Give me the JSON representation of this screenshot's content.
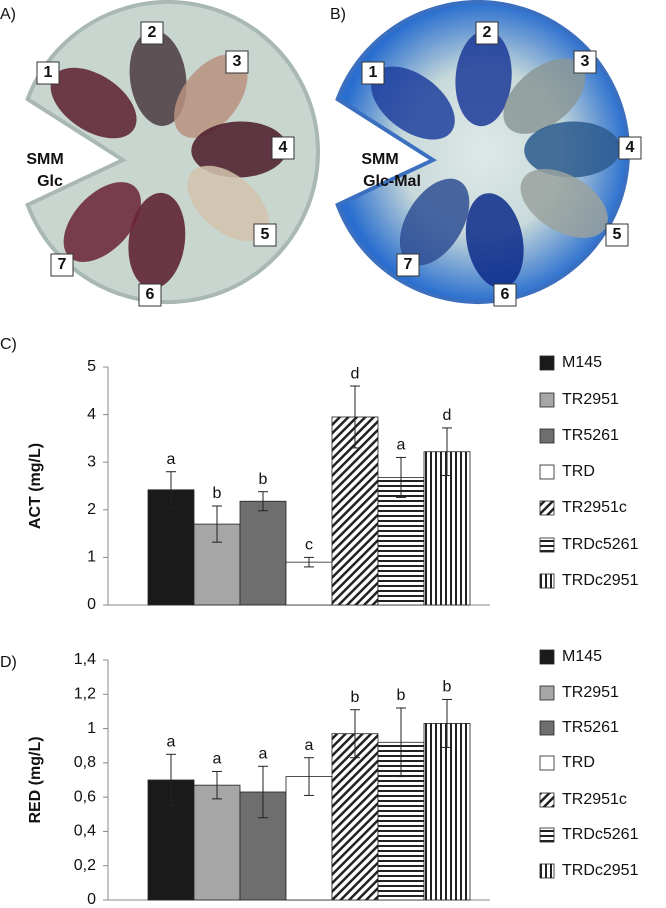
{
  "panels": [
    {
      "label": "A)",
      "medium": [
        "SMM",
        "Glc"
      ],
      "strains": [
        "1",
        "2",
        "3",
        "4",
        "5",
        "6",
        "7"
      ],
      "colors": [
        "#5a1f2e",
        "#4a3a40",
        "#b8917e",
        "#4a1a28",
        "#d2c3ad",
        "#5a1a2c",
        "#6a2236"
      ]
    },
    {
      "label": "B)",
      "medium": [
        "SMM",
        "Glc-Mal"
      ],
      "strains": [
        "1",
        "2",
        "3",
        "4",
        "5",
        "6",
        "7"
      ],
      "colors": [
        "#1f3f9e",
        "#1c3a98",
        "#8a9896",
        "#2c5a8e",
        "#9aa29e",
        "#0c2a8a",
        "#2f4f94"
      ]
    }
  ],
  "chart_data": [
    {
      "type": "bar",
      "panel": "C)",
      "y_label": "ACT (mg/L)",
      "categories": [
        "M145",
        "TR2951",
        "TR5261",
        "TRD",
        "TR2951c",
        "TRDc5261",
        "TRDc2951"
      ],
      "values": [
        2.42,
        1.7,
        2.18,
        0.9,
        3.95,
        2.68,
        3.22
      ],
      "errors": [
        0.38,
        0.38,
        0.2,
        0.1,
        0.65,
        0.42,
        0.5
      ],
      "annotations": [
        "a",
        "b",
        "b",
        "c",
        "d",
        "a",
        "d"
      ],
      "colors": [
        "#1a1a1a",
        "#a6a6a6",
        "#6e6e6e",
        "#ffffff",
        "#ffffff",
        "#ffffff",
        "#ffffff"
      ],
      "patterns": [
        "solid",
        "solid",
        "solid",
        "solid",
        "diagonal",
        "horizontal",
        "vertical"
      ],
      "ylim": [
        0,
        5
      ],
      "yticks": [
        0,
        1,
        2,
        3,
        4,
        5
      ],
      "legend": "right"
    },
    {
      "type": "bar",
      "panel": "D)",
      "y_label": "RED (mg/L)",
      "categories": [
        "M145",
        "TR2951",
        "TR5261",
        "TRD",
        "TR2951c",
        "TRDc5261",
        "TRDc2951"
      ],
      "values": [
        0.7,
        0.67,
        0.63,
        0.72,
        0.97,
        0.92,
        1.03
      ],
      "errors": [
        0.15,
        0.08,
        0.15,
        0.11,
        0.14,
        0.2,
        0.14
      ],
      "annotations": [
        "a",
        "a",
        "a",
        "a",
        "b",
        "b",
        "b"
      ],
      "colors": [
        "#1a1a1a",
        "#a6a6a6",
        "#6e6e6e",
        "#ffffff",
        "#ffffff",
        "#ffffff",
        "#ffffff"
      ],
      "patterns": [
        "solid",
        "solid",
        "solid",
        "solid",
        "diagonal",
        "horizontal",
        "vertical"
      ],
      "ylim": [
        0,
        1.4
      ],
      "yticks": [
        0,
        {
          "value": 0.2,
          "label": "0,2"
        },
        {
          "value": 0.4,
          "label": "0,4"
        },
        {
          "value": 0.6,
          "label": "0,6"
        },
        {
          "value": 0.8,
          "label": "0,8"
        },
        1,
        {
          "value": 1.2,
          "label": "1,2"
        },
        {
          "value": 1.4,
          "label": "1,4"
        }
      ],
      "legend": "right"
    }
  ]
}
